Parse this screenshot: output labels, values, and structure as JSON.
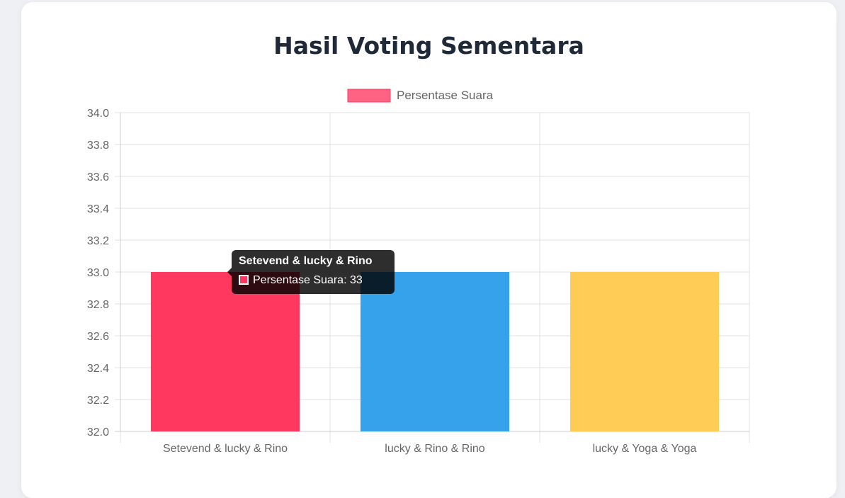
{
  "page": {
    "title": "Hasil Voting Sementara"
  },
  "chart_data": {
    "type": "bar",
    "title": "",
    "xlabel": "",
    "ylabel": "",
    "categories": [
      "Setevend & lucky & Rino",
      "lucky & Rino & Rino",
      "lucky & Yoga & Yoga"
    ],
    "series": [
      {
        "name": "Persentase Suara",
        "values": [
          33,
          33,
          33
        ],
        "colors": [
          "#ff3860",
          "#36a2eb",
          "#ffcd56"
        ],
        "legend_color": "#ff6384"
      }
    ],
    "ylim": [
      32.0,
      34.0
    ],
    "yticks": [
      "32.0",
      "32.2",
      "32.4",
      "32.6",
      "32.8",
      "33.0",
      "33.2",
      "33.4",
      "33.6",
      "33.8",
      "34.0"
    ],
    "grid": true,
    "legend": "top-center"
  },
  "tooltip": {
    "title": "Setevend & lucky & Rino",
    "body": "Persentase Suara: 33",
    "swatch_color": "#ff3860"
  }
}
